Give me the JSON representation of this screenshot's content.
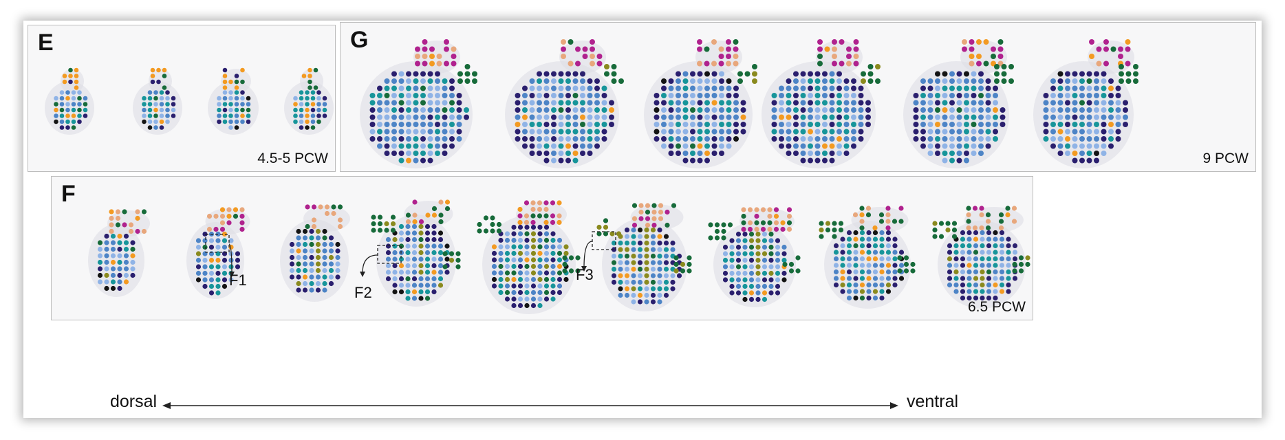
{
  "panels": {
    "E": {
      "letter": "E",
      "caption": "4.5-5 PCW"
    },
    "G": {
      "letter": "G",
      "caption": "9 PCW"
    },
    "F": {
      "letter": "F",
      "caption": "6.5 PCW"
    }
  },
  "callouts": [
    "F1",
    "F2",
    "F3"
  ],
  "axis": {
    "left": "dorsal",
    "right": "ventral"
  },
  "colors": {
    "black": "#141414",
    "navy": "#2a1f6e",
    "steel_blue": "#4d84c6",
    "light_blue": "#8fb3e6",
    "teal": "#17959a",
    "dark_green": "#176b3a",
    "orange": "#f39a21",
    "magenta": "#b0228e",
    "peach": "#e8a77c",
    "olive": "#8a8a1e",
    "tissue": "#dcdde3"
  }
}
